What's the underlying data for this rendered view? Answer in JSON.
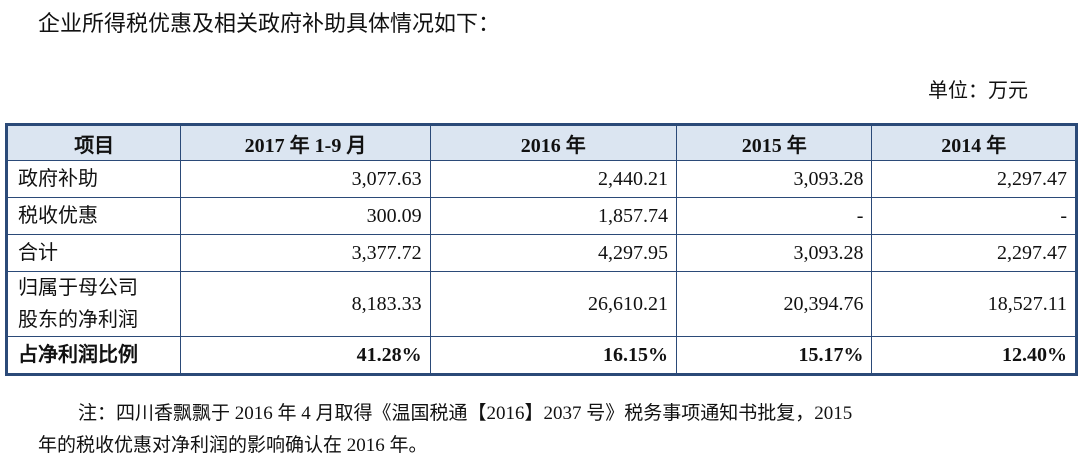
{
  "intro": "企业所得税优惠及相关政府补助具体情况如下：",
  "unit": "单位：万元",
  "table": {
    "header": [
      "项目",
      "2017 年 1-9 月",
      "2016 年",
      "2015 年",
      "2014 年"
    ],
    "rows": [
      {
        "label": [
          "政府补助"
        ],
        "cells": [
          "3,077.63",
          "2,440.21",
          "3,093.28",
          "2,297.47"
        ]
      },
      {
        "label": [
          "税收优惠"
        ],
        "cells": [
          "300.09",
          "1,857.74",
          "-",
          "-"
        ]
      },
      {
        "label": [
          "合计"
        ],
        "cells": [
          "3,377.72",
          "4,297.95",
          "3,093.28",
          "2,297.47"
        ]
      },
      {
        "label": [
          "归属于母公司",
          "股东的净利润"
        ],
        "cells": [
          "8,183.33",
          "26,610.21",
          "20,394.76",
          "18,527.11"
        ]
      },
      {
        "label": [
          "占净利润比例"
        ],
        "cells": [
          "41.28%",
          "16.15%",
          "15.17%",
          "12.40%"
        ],
        "bold": true
      }
    ]
  },
  "note": [
    "注：四川香飘飘于 2016 年 4 月取得《温国税通【2016】2037 号》税务事项通知书批复，2015",
    "年的税收优惠对净利润的影响确认在 2016 年。"
  ]
}
